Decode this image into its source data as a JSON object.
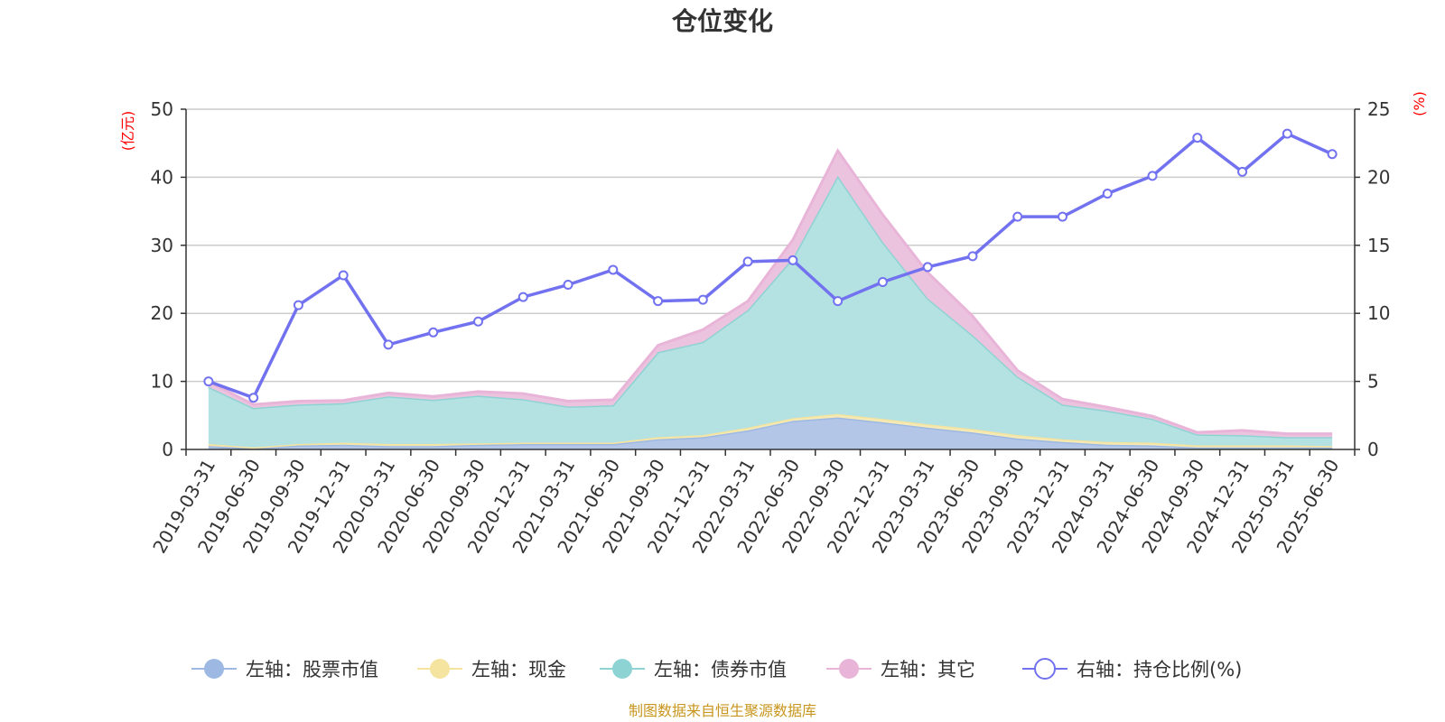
{
  "chart_data": {
    "type": "area",
    "title": "仓位变化",
    "left_axis": {
      "unit": "(亿元)",
      "ylim": [
        0,
        50
      ],
      "ticks": [
        "0",
        "10",
        "20",
        "30",
        "40",
        "50"
      ]
    },
    "right_axis": {
      "unit": "(%)",
      "ylim": [
        0,
        25
      ],
      "ticks": [
        "0",
        "5",
        "10",
        "15",
        "20",
        "25"
      ]
    },
    "grid": true,
    "legend_position": "bottom",
    "categories": [
      "2019-03-31",
      "2019-06-30",
      "2019-09-30",
      "2019-12-31",
      "2020-03-31",
      "2020-06-30",
      "2020-09-30",
      "2020-12-31",
      "2021-03-31",
      "2021-06-30",
      "2021-09-30",
      "2021-12-31",
      "2022-03-31",
      "2022-06-30",
      "2022-09-30",
      "2022-12-31",
      "2023-03-31",
      "2023-06-30",
      "2023-09-30",
      "2023-12-31",
      "2024-03-31",
      "2024-06-30",
      "2024-09-30",
      "2024-12-31",
      "2025-03-31",
      "2025-06-30"
    ],
    "series": [
      {
        "name": "左轴：股票市值",
        "axis": "left",
        "stack": true,
        "color": "#9db8e2",
        "fill": "#b3c6e8",
        "values": [
          0.5,
          0.2,
          0.6,
          0.7,
          0.5,
          0.5,
          0.7,
          0.8,
          0.8,
          0.8,
          1.5,
          1.8,
          2.8,
          4.2,
          4.7,
          4.0,
          3.2,
          2.5,
          1.6,
          1.1,
          0.7,
          0.6,
          0.3,
          0.3,
          0.3,
          0.3
        ]
      },
      {
        "name": "左轴：现金",
        "axis": "left",
        "stack": true,
        "color": "#f5e3a0",
        "fill": "#f5eab5",
        "values": [
          0.3,
          0.1,
          0.2,
          0.3,
          0.3,
          0.3,
          0.2,
          0.2,
          0.2,
          0.2,
          0.3,
          0.3,
          0.4,
          0.4,
          0.5,
          0.5,
          0.5,
          0.5,
          0.5,
          0.4,
          0.4,
          0.4,
          0.3,
          0.3,
          0.3,
          0.2
        ]
      },
      {
        "name": "左轴：债券市值",
        "axis": "left",
        "stack": true,
        "color": "#8ed3d4",
        "fill": "#b4e1e1",
        "values": [
          8.4,
          5.8,
          5.8,
          5.8,
          7.0,
          6.5,
          7.0,
          6.4,
          5.3,
          5.5,
          12.5,
          13.7,
          17.3,
          23.5,
          35.0,
          26.0,
          18.5,
          13.8,
          8.6,
          5.1,
          4.6,
          3.5,
          1.6,
          1.5,
          1.2,
          1.3
        ]
      },
      {
        "name": "左轴：其它",
        "axis": "left",
        "stack": true,
        "color": "#e8b4d8",
        "fill": "#ecc3de",
        "values": [
          0.8,
          0.5,
          0.5,
          0.4,
          0.5,
          0.5,
          0.6,
          0.8,
          0.8,
          0.8,
          1.0,
          1.8,
          1.3,
          2.7,
          3.7,
          4.0,
          3.8,
          2.8,
          0.9,
          0.8,
          0.5,
          0.4,
          0.3,
          0.7,
          0.5,
          0.5
        ]
      },
      {
        "name": "右轴：持仓比例(%)",
        "axis": "right",
        "type": "line",
        "color": "#7272f0",
        "values": [
          5.0,
          3.8,
          10.6,
          12.8,
          7.7,
          8.6,
          9.4,
          11.2,
          12.1,
          13.2,
          10.9,
          11.0,
          13.8,
          13.9,
          10.9,
          12.3,
          13.4,
          14.2,
          17.1,
          17.1,
          18.8,
          20.1,
          22.9,
          20.4,
          23.2,
          21.7
        ]
      }
    ]
  },
  "footer": "制图数据来自恒生聚源数据库"
}
